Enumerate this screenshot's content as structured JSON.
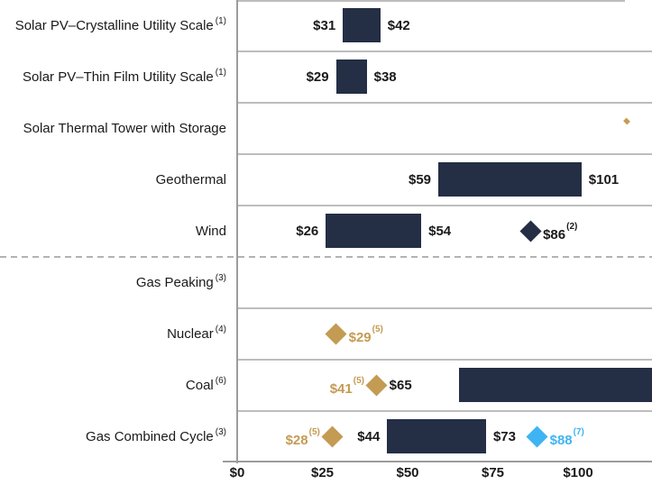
{
  "colors": {
    "bar_navy": "#242E45",
    "gold": "#C49B53",
    "blue": "#3FB4F4",
    "grid": "#BDBDBD",
    "axis": "#9C9C9C",
    "text": "#1A1A1A"
  },
  "chart_data": {
    "type": "bar",
    "subtype": "horizontal-range-bar-with-diamond-markers",
    "title": "",
    "xlabel": "",
    "ylabel": "",
    "x_axis": {
      "tick_labels": [
        "$0",
        "$25",
        "$50",
        "$75",
        "$100"
      ],
      "tick_values": [
        0,
        25,
        50,
        75,
        100
      ],
      "visible_max_value": 122,
      "grid": false
    },
    "divider_note": "dashed line separates first 5 rows (renewables) from last 4 rows (conventional)",
    "rows": [
      {
        "label": "Solar PV–Crystalline Utility Scale",
        "footnote": "(1)",
        "bar": {
          "low": 31,
          "high": 42,
          "low_label": "$31",
          "high_label": "$42"
        }
      },
      {
        "label": "Solar PV–Thin Film Utility Scale",
        "footnote": "(1)",
        "bar": {
          "low": 29,
          "high": 38,
          "low_label": "$29",
          "high_label": "$38"
        }
      },
      {
        "label": "Solar Thermal Tower with Storage",
        "footnote": null,
        "bar": null,
        "note": "range lies beyond right edge of visible area"
      },
      {
        "label": "Geothermal",
        "footnote": null,
        "bar": {
          "low": 59,
          "high": 101,
          "low_label": "$59",
          "high_label": "$101"
        }
      },
      {
        "label": "Wind",
        "footnote": null,
        "bar": {
          "low": 26,
          "high": 54,
          "low_label": "$26",
          "high_label": "$54"
        },
        "diamonds": [
          {
            "value": 86,
            "label": "$86",
            "footnote": "(2)",
            "color_key": "navy",
            "label_side": "right"
          }
        ]
      },
      {
        "label": "Gas Peaking",
        "footnote": "(3)",
        "bar": null,
        "note": "range lies beyond right edge of visible area"
      },
      {
        "label": "Nuclear",
        "footnote": "(4)",
        "bar": null,
        "diamonds": [
          {
            "value": 29,
            "label": "$29",
            "footnote": "(5)",
            "color_key": "gold",
            "label_side": "right"
          }
        ]
      },
      {
        "label": "Coal",
        "footnote": "(6)",
        "bar": {
          "low": 65,
          "high": null,
          "low_label": "$65",
          "high_label": null
        },
        "diamonds": [
          {
            "value": 41,
            "label": "$41",
            "footnote": "(5)",
            "color_key": "gold",
            "label_side": "left"
          }
        ]
      },
      {
        "label": "Gas Combined Cycle",
        "footnote": "(3)",
        "bar": {
          "low": 44,
          "high": 73,
          "low_label": "$44",
          "high_label": "$73"
        },
        "diamonds": [
          {
            "value": 28,
            "label": "$28",
            "footnote": "(5)",
            "color_key": "gold",
            "label_side": "left"
          },
          {
            "value": 88,
            "label": "$88",
            "footnote": "(7)",
            "color_key": "blue",
            "label_side": "right"
          }
        ]
      }
    ]
  }
}
